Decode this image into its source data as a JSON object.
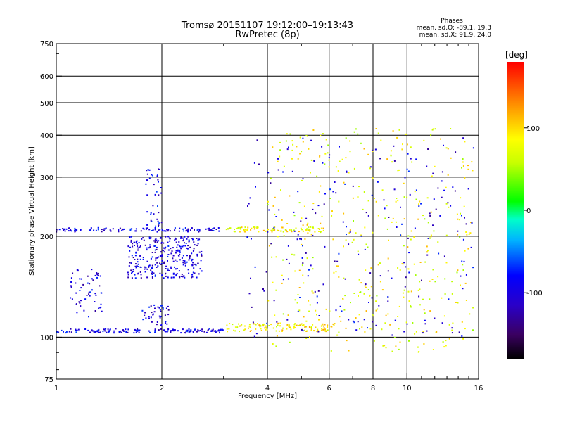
{
  "chart_data": {
    "type": "scatter",
    "title": "Tromsø 20151107 19:12:00–19:13:43",
    "subtitle": "RwPretec (8p)",
    "stats": {
      "heading": "Phases",
      "line1": "mean, sd,O: -89.1, 19.3",
      "line2": "mean, sd,X: 91.9, 24.0"
    },
    "xlabel": "Frequency [MHz]",
    "ylabel": "Stationary phase Virtual Height [km]",
    "x_scale": "log",
    "y_scale": "log",
    "xlim": [
      1,
      16
    ],
    "ylim": [
      75,
      750
    ],
    "grid": true,
    "x_ticks": [
      1,
      2,
      4,
      6,
      8,
      10,
      16
    ],
    "x_tick_labels": [
      "1",
      "2",
      "4",
      "6",
      "8",
      "10",
      "16"
    ],
    "x_grid": [
      2,
      4,
      6,
      8,
      10
    ],
    "y_ticks": [
      75,
      100,
      200,
      300,
      400,
      500,
      600,
      750
    ],
    "y_tick_labels": [
      "75",
      "100",
      "200",
      "300",
      "400",
      "500",
      "600",
      "750"
    ],
    "y_grid": [
      100,
      200,
      300,
      400,
      500,
      600
    ],
    "colorbar": {
      "label": "[deg]",
      "range": [
        -180,
        180
      ],
      "ticks": [
        100,
        0,
        -100
      ],
      "tick_labels": [
        "100",
        "0",
        "-100"
      ]
    },
    "traces": [
      {
        "desc": "o-mode E trace",
        "f_range": [
          1.0,
          3.0
        ],
        "h_range": [
          103,
          106
        ],
        "phase": -95,
        "count": 150
      },
      {
        "desc": "x-mode E trace",
        "f_range": [
          3.05,
          6.2
        ],
        "h_range": [
          104,
          110
        ],
        "phase": 90,
        "count": 110
      },
      {
        "desc": "o-mode F trace",
        "f_range": [
          1.0,
          3.0
        ],
        "h_range": [
          206,
          212
        ],
        "phase": -95,
        "count": 110
      },
      {
        "desc": "x-mode F trace",
        "f_range": [
          3.05,
          5.9
        ],
        "h_range": [
          206,
          213
        ],
        "phase": 85,
        "count": 80
      },
      {
        "desc": "o-mode cluster",
        "f_range": [
          1.6,
          2.6
        ],
        "h_range": [
          150,
          200
        ],
        "phase": -100,
        "count": 300
      },
      {
        "desc": "o-mode column",
        "f_range": [
          1.8,
          2.0
        ],
        "h_range": [
          210,
          320
        ],
        "phase": -95,
        "count": 40
      },
      {
        "desc": "o-mode low",
        "f_range": [
          1.08,
          1.35
        ],
        "h_range": [
          115,
          160
        ],
        "phase": -100,
        "count": 60
      },
      {
        "desc": "o-mode lower",
        "f_range": [
          1.75,
          2.1
        ],
        "h_range": [
          108,
          125
        ],
        "phase": -100,
        "count": 40
      },
      {
        "desc": "x-mode scatter",
        "f_range": [
          4.0,
          15.5
        ],
        "h_range": [
          90,
          420
        ],
        "phase": 80,
        "count": 420
      },
      {
        "desc": "o-mode scatter",
        "f_range": [
          3.5,
          15.5
        ],
        "h_range": [
          100,
          400
        ],
        "phase": -100,
        "count": 220
      }
    ]
  }
}
